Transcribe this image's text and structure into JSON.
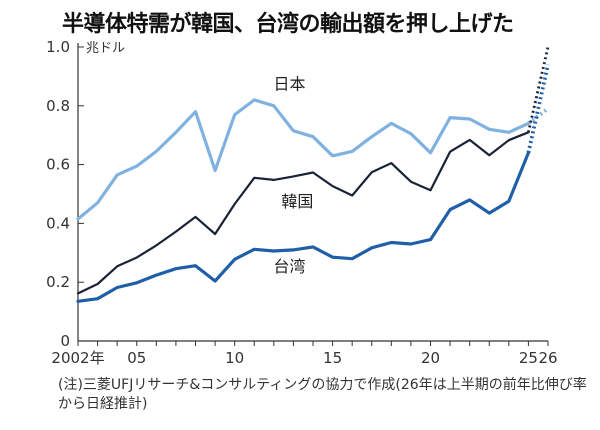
{
  "chart_data": {
    "type": "line",
    "title": "半導体特需が韓国、台湾の輸出額を押し上げた",
    "unit_label": "兆ドル",
    "ylim": [
      0,
      1.0
    ],
    "yticks": [
      "0",
      "0.2",
      "0.4",
      "0.6",
      "0.8",
      "1.0"
    ],
    "ytick_values": [
      0,
      0.2,
      0.4,
      0.6,
      0.8,
      1.0
    ],
    "xlim": [
      2002,
      2026
    ],
    "xtick_labels": [
      {
        "year": 2002,
        "label": "2002年"
      },
      {
        "year": 2005,
        "label": "05"
      },
      {
        "year": 2010,
        "label": "10"
      },
      {
        "year": 2015,
        "label": "15"
      },
      {
        "year": 2020,
        "label": "20"
      },
      {
        "year": 2025,
        "label": "25"
      },
      {
        "year": 2026,
        "label": "26"
      }
    ],
    "grid": false,
    "note": "(注)三菱UFJリサーチ&コンサルティングの協力で作成(26年は上半期の前年比伸び率から日経推計)",
    "series": [
      {
        "name": "日本",
        "color": "#7fb2e0",
        "x": [
          2002,
          2003,
          2004,
          2005,
          2006,
          2007,
          2008,
          2009,
          2010,
          2011,
          2012,
          2013,
          2014,
          2015,
          2016,
          2017,
          2018,
          2019,
          2020,
          2021,
          2022,
          2023,
          2024,
          2025
        ],
        "values": [
          0.415,
          0.47,
          0.565,
          0.595,
          0.645,
          0.71,
          0.78,
          0.58,
          0.77,
          0.82,
          0.8,
          0.715,
          0.695,
          0.63,
          0.645,
          0.695,
          0.74,
          0.705,
          0.64,
          0.76,
          0.755,
          0.72,
          0.71,
          0.74
        ],
        "projection": {
          "x": [
            2025,
            2026
          ],
          "values": [
            0.74,
            0.79
          ]
        }
      },
      {
        "name": "韓国",
        "color": "#1a2238",
        "x": [
          2002,
          2003,
          2004,
          2005,
          2006,
          2007,
          2008,
          2009,
          2010,
          2011,
          2012,
          2013,
          2014,
          2015,
          2016,
          2017,
          2018,
          2019,
          2020,
          2021,
          2022,
          2023,
          2024,
          2025
        ],
        "values": [
          0.162,
          0.194,
          0.254,
          0.284,
          0.325,
          0.372,
          0.422,
          0.364,
          0.466,
          0.555,
          0.548,
          0.56,
          0.573,
          0.527,
          0.495,
          0.574,
          0.605,
          0.542,
          0.513,
          0.644,
          0.684,
          0.632,
          0.683,
          0.71
        ],
        "projection": {
          "x": [
            2025,
            2026
          ],
          "values": [
            0.71,
            1.0
          ]
        }
      },
      {
        "name": "台湾",
        "color": "#1f5fa8",
        "x": [
          2002,
          2003,
          2004,
          2005,
          2006,
          2007,
          2008,
          2009,
          2010,
          2011,
          2012,
          2013,
          2014,
          2015,
          2016,
          2017,
          2018,
          2019,
          2020,
          2021,
          2022,
          2023,
          2024,
          2025
        ],
        "values": [
          0.135,
          0.144,
          0.182,
          0.198,
          0.224,
          0.246,
          0.256,
          0.204,
          0.278,
          0.312,
          0.306,
          0.31,
          0.32,
          0.285,
          0.28,
          0.317,
          0.335,
          0.33,
          0.345,
          0.447,
          0.48,
          0.435,
          0.475,
          0.64
        ],
        "projection": {
          "x": [
            2025,
            2026
          ],
          "values": [
            0.64,
            0.94
          ]
        }
      }
    ],
    "series_labels": [
      {
        "name": "日本",
        "x": 2012.8,
        "y": 0.855
      },
      {
        "name": "韓国",
        "x": 2013.2,
        "y": 0.455
      },
      {
        "name": "台湾",
        "x": 2012.8,
        "y": 0.235
      }
    ]
  }
}
